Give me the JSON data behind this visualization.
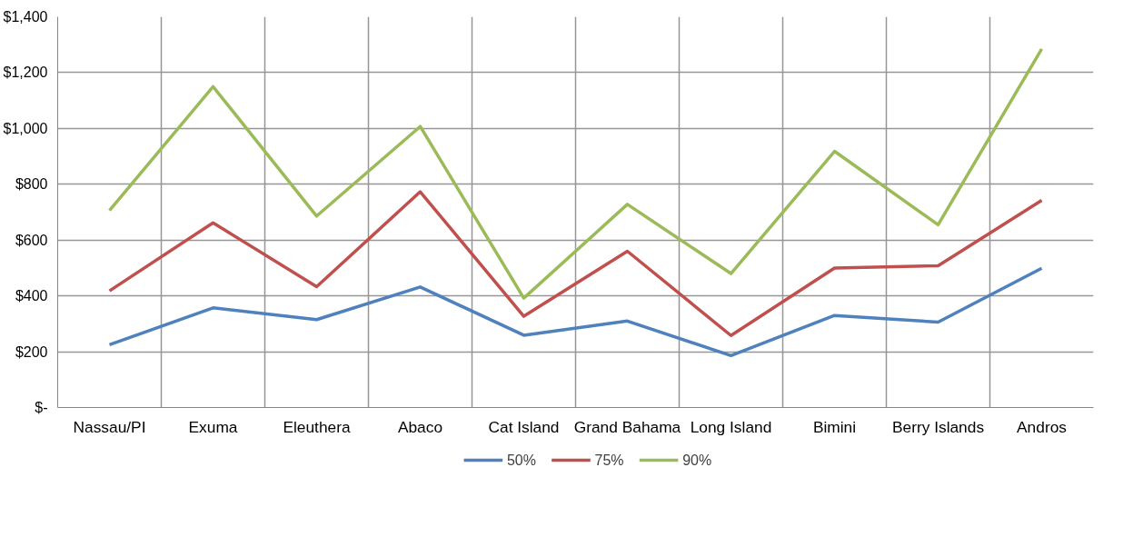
{
  "chart_data": {
    "type": "line",
    "categories": [
      "Nassau/PI",
      "Exuma",
      "Eleuthera",
      "Abaco",
      "Cat Island",
      "Grand Bahama",
      "Long Island",
      "Bimini",
      "Berry Islands",
      "Andros"
    ],
    "series": [
      {
        "name": "50%",
        "color": "#4f81bd",
        "values": [
          225,
          357,
          315,
          432,
          259,
          310,
          186,
          330,
          306,
          499
        ]
      },
      {
        "name": "75%",
        "color": "#c0504d",
        "values": [
          418,
          662,
          433,
          773,
          327,
          560,
          258,
          500,
          508,
          742
        ]
      },
      {
        "name": "90%",
        "color": "#9bbb59",
        "values": [
          706,
          1150,
          686,
          1007,
          392,
          728,
          480,
          918,
          655,
          1285
        ]
      }
    ],
    "ylim": [
      0,
      1400
    ],
    "yticks": [
      {
        "value": 0,
        "label": "$-"
      },
      {
        "value": 200,
        "label": "$200"
      },
      {
        "value": 400,
        "label": "$400"
      },
      {
        "value": 600,
        "label": "$600"
      },
      {
        "value": 800,
        "label": "$800"
      },
      {
        "value": 1000,
        "label": "$1,000"
      },
      {
        "value": 1200,
        "label": "$1,200"
      },
      {
        "value": 1400,
        "label": "$1,400"
      }
    ],
    "grid": true,
    "legend": "bottom",
    "marker": "none",
    "line_style": "solid"
  }
}
